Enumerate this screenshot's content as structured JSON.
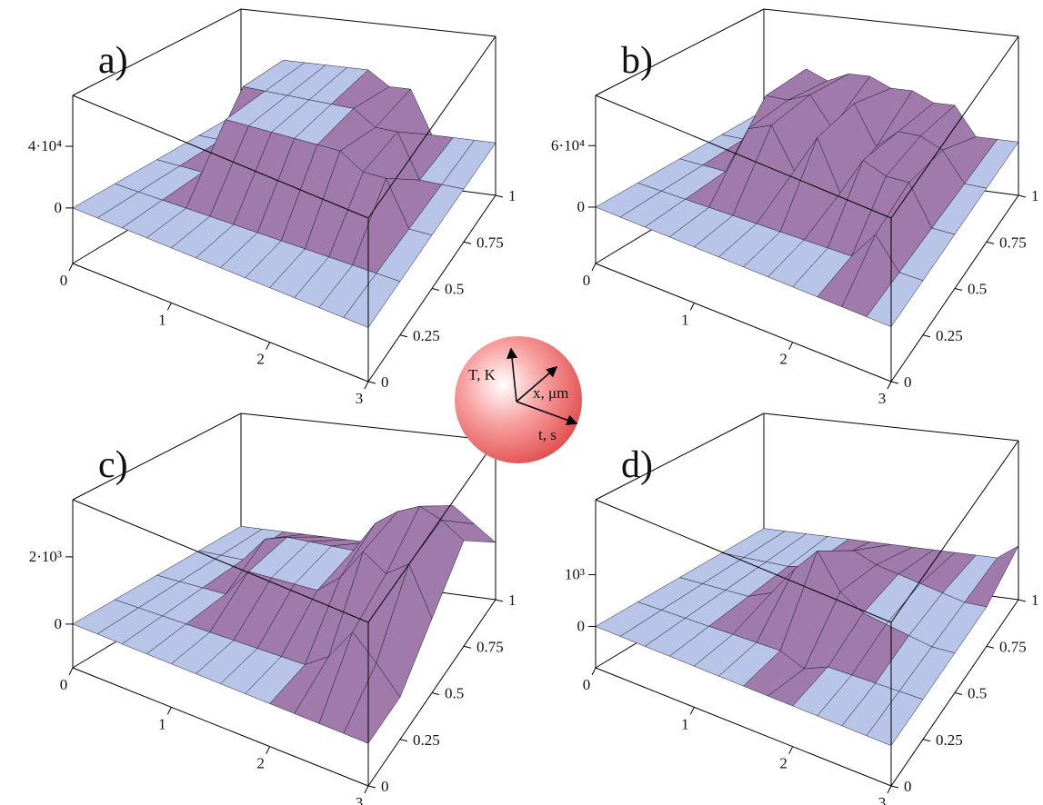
{
  "chart_data": [
    {
      "type": "surface",
      "label": "a)",
      "t": [
        0,
        0.25,
        0.5,
        0.75,
        1,
        1.25,
        1.5,
        1.75,
        2,
        2.25,
        2.5,
        2.75,
        3
      ],
      "x": [
        0,
        0.25,
        0.5,
        0.75,
        1
      ],
      "z": [
        [
          0,
          0,
          0,
          0,
          0,
          0,
          0,
          0,
          0,
          0,
          0,
          0,
          0
        ],
        [
          0,
          0,
          0,
          0,
          0,
          0,
          0,
          0,
          0,
          0,
          0,
          0,
          0
        ],
        [
          0,
          0,
          0,
          40000,
          40000,
          40000,
          40000,
          40000,
          40000,
          30000,
          30000,
          0,
          0
        ],
        [
          0,
          0,
          40000,
          40000,
          40000,
          40000,
          40000,
          40000,
          30000,
          30000,
          0,
          0,
          0
        ],
        [
          0,
          0,
          40000,
          40000,
          40000,
          40000,
          40000,
          30000,
          30000,
          0,
          0,
          0,
          0
        ]
      ],
      "tlim": [
        0,
        3
      ],
      "xlim": [
        0,
        1
      ],
      "zlim": [
        -36000,
        73000
      ],
      "tticks": [
        0,
        1,
        2,
        3
      ],
      "xticks": [
        0,
        0.25,
        0.5,
        0.75,
        1
      ],
      "zticks": [
        0,
        {
          "value": 40000,
          "label": "4·10⁴"
        }
      ]
    },
    {
      "type": "surface",
      "label": "b)",
      "t": [
        0,
        0.25,
        0.5,
        0.75,
        1,
        1.25,
        1.5,
        1.75,
        2,
        2.25,
        2.5,
        2.75,
        3
      ],
      "x": [
        0,
        0.25,
        0.5,
        0.75,
        1
      ],
      "z": [
        [
          0,
          0,
          0,
          0,
          0,
          0,
          0,
          0,
          0,
          0,
          0,
          0,
          0
        ],
        [
          0,
          0,
          0,
          0,
          0,
          0,
          0,
          0,
          0,
          0,
          30000,
          0,
          0
        ],
        [
          0,
          0,
          0,
          50000,
          60000,
          20000,
          60000,
          10000,
          50000,
          40000,
          40000,
          0,
          0
        ],
        [
          0,
          0,
          50000,
          50000,
          60000,
          30000,
          60000,
          20000,
          40000,
          40000,
          30000,
          0,
          0
        ],
        [
          0,
          0,
          50000,
          40000,
          50000,
          50000,
          40000,
          40000,
          30000,
          30000,
          0,
          0,
          0
        ]
      ],
      "tlim": [
        0,
        3
      ],
      "xlim": [
        0,
        1
      ],
      "zlim": [
        -55000,
        109000
      ],
      "tticks": [
        0,
        1,
        2,
        3
      ],
      "xticks": [
        0,
        0.25,
        0.5,
        0.75,
        1
      ],
      "zticks": [
        0,
        {
          "value": 60000,
          "label": "6·10⁴"
        }
      ]
    },
    {
      "type": "surface",
      "label": "c)",
      "t": [
        0,
        0.25,
        0.5,
        0.75,
        1,
        1.25,
        1.5,
        1.75,
        2,
        2.25,
        2.5,
        2.75,
        3
      ],
      "x": [
        0,
        0.25,
        0.5,
        0.75,
        1
      ],
      "z": [
        [
          0,
          0,
          0,
          0,
          0,
          0,
          0,
          0,
          0,
          0,
          0,
          0,
          0
        ],
        [
          0,
          0,
          0,
          0,
          0,
          0,
          0,
          0,
          0,
          500,
          1500,
          800,
          0
        ],
        [
          0,
          0,
          0,
          0,
          900,
          900,
          900,
          900,
          1500,
          2500,
          2000,
          2500,
          1000
        ],
        [
          0,
          0,
          0,
          800,
          1000,
          1000,
          1000,
          1000,
          2000,
          2500,
          2800,
          2500,
          2000
        ],
        [
          0,
          0,
          0,
          0,
          0,
          0,
          0,
          0,
          500,
          1000,
          1500,
          1000,
          500
        ]
      ],
      "tlim": [
        0,
        3
      ],
      "xlim": [
        0,
        1
      ],
      "zlim": [
        -1300,
        3700
      ],
      "tticks": [
        0,
        1,
        2,
        3
      ],
      "xticks": [
        0,
        0.25,
        0.5,
        0.75,
        1
      ],
      "zticks": [
        0,
        {
          "value": 2000,
          "label": "2·10³"
        }
      ]
    },
    {
      "type": "surface",
      "label": "d)",
      "t": [
        0,
        0.25,
        0.5,
        0.75,
        1,
        1.25,
        1.5,
        1.75,
        2,
        2.25,
        2.5,
        2.75,
        3
      ],
      "x": [
        0,
        0.25,
        0.5,
        0.75,
        1
      ],
      "z": [
        [
          0,
          0,
          0,
          0,
          0,
          0,
          0,
          0,
          0,
          0,
          0,
          0,
          0
        ],
        [
          0,
          0,
          0,
          0,
          0,
          0,
          0,
          -200,
          0,
          0,
          0,
          0,
          0
        ],
        [
          0,
          0,
          0,
          0,
          200,
          800,
          1300,
          600,
          300,
          200,
          100,
          0,
          0
        ],
        [
          0,
          0,
          0,
          0,
          100,
          300,
          600,
          400,
          300,
          200,
          100,
          0,
          0
        ],
        [
          0,
          0,
          0,
          0,
          0,
          0,
          0,
          0,
          0,
          0,
          0,
          0,
          300
        ]
      ],
      "tlim": [
        0,
        3
      ],
      "xlim": [
        0,
        1
      ],
      "zlim": [
        -800,
        2450
      ],
      "tticks": [
        0,
        1,
        2,
        3
      ],
      "xticks": [
        0,
        0.25,
        0.5,
        0.75,
        1
      ],
      "zticks": [
        0,
        {
          "value": 1000,
          "label": "10³"
        }
      ]
    }
  ],
  "axes_legend": {
    "T": "T, K",
    "x": "x, μm",
    "t": "t, s"
  }
}
